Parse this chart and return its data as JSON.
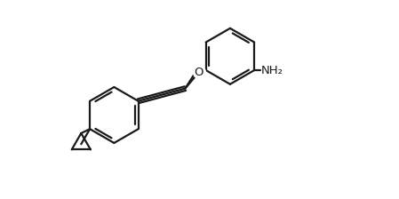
{
  "bg_color": "#ffffff",
  "line_color": "#1a1a1a",
  "line_width": 1.6,
  "figure_size": [
    4.49,
    2.24
  ],
  "dpi": 100,
  "nh2_label": "NH₂",
  "o_label": "O",
  "font_size": 9.5
}
